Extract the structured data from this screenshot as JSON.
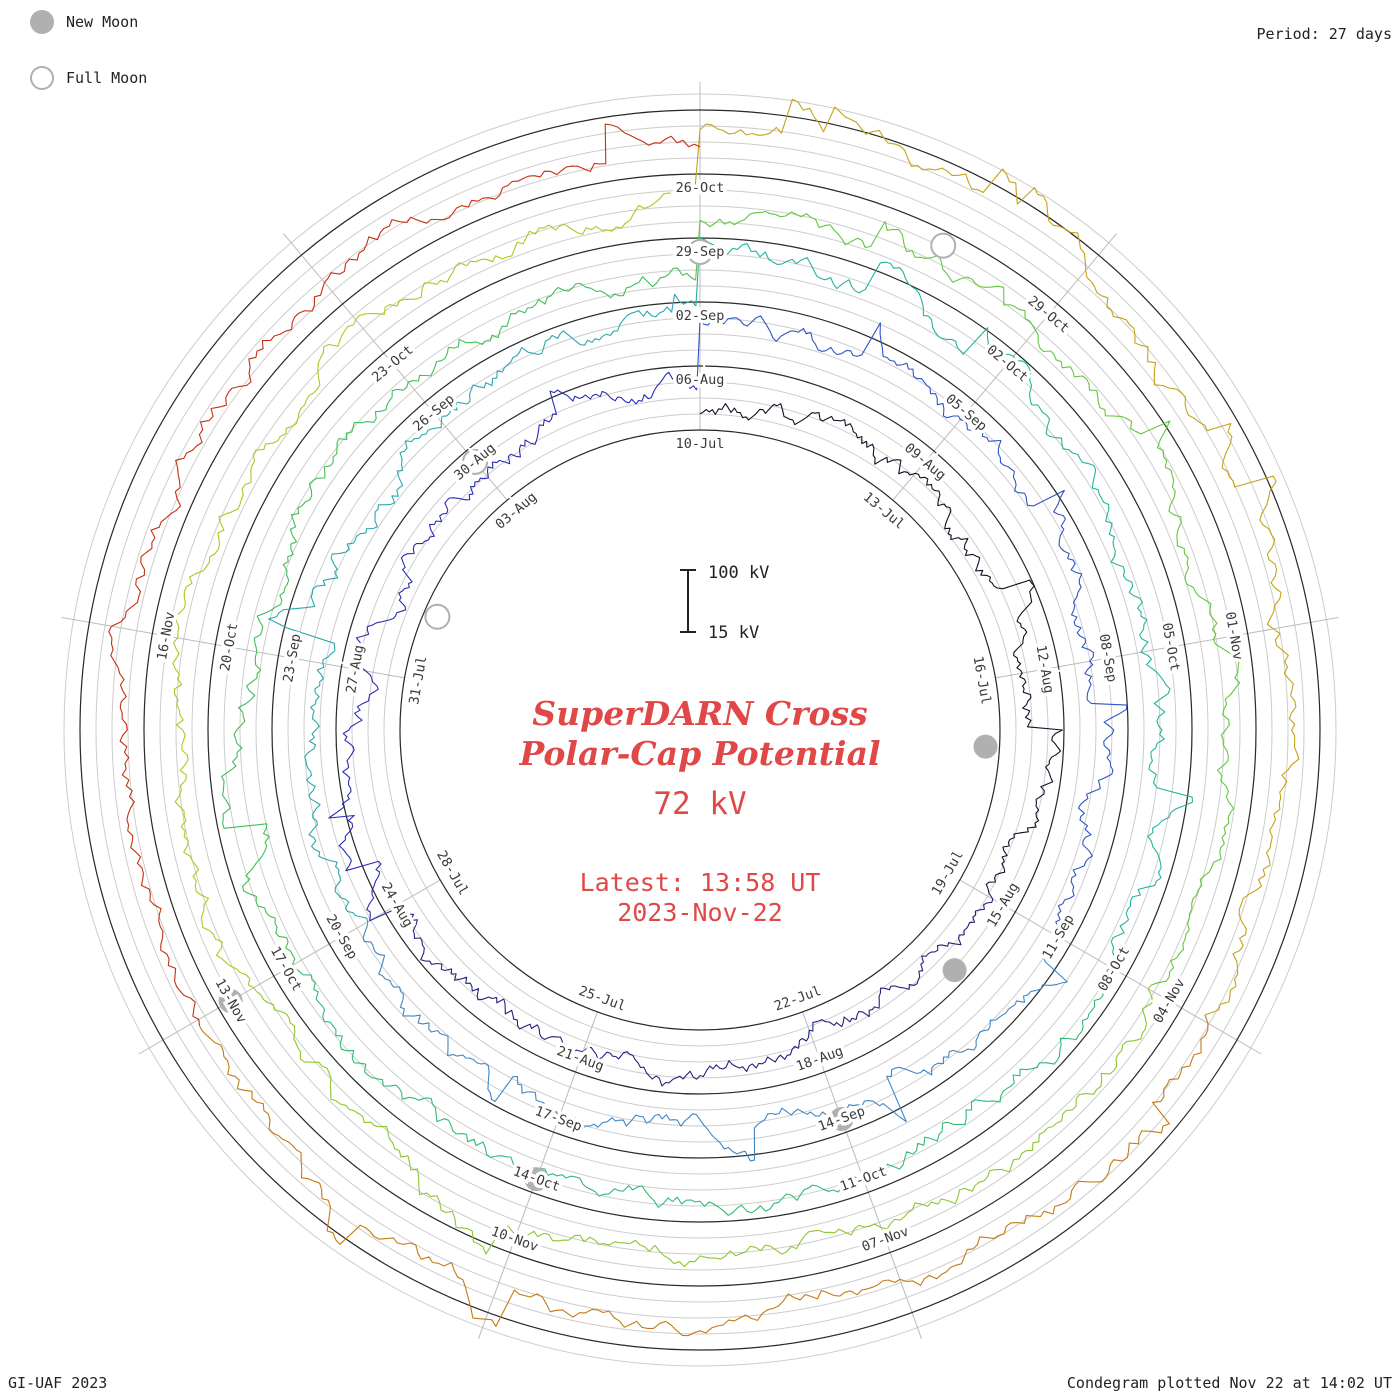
{
  "legend": {
    "new_moon": "New Moon",
    "full_moon": "Full Moon"
  },
  "header": {
    "period": "Period: 27 days"
  },
  "footer": {
    "credit": "GI-UAF 2023",
    "plotted": "Condegram plotted Nov 22 at 14:02 UT"
  },
  "center": {
    "title_line1": "SuperDARN Cross",
    "title_line2": "Polar-Cap Potential",
    "value": "72 kV",
    "latest_line1": "Latest: 13:58 UT",
    "latest_line2": "2023-Nov-22"
  },
  "scale_bar": {
    "top": "100 kV",
    "bottom": "15 kV"
  },
  "chart_data": {
    "type": "line",
    "variant": "condegram-spiral (time series wrapped in rings)",
    "title": "SuperDARN Cross Polar-Cap Potential",
    "units": "kV",
    "latest_value_kv": 72,
    "latest_time": "13:58 UT",
    "latest_date": "2023-Nov-22",
    "period_days": 27,
    "rings": 5,
    "label_interval_days": 3,
    "sectors_per_ring": 9,
    "value_scale_kv": [
      15,
      100
    ],
    "date_labels": [
      "10-Jul",
      "13-Jul",
      "16-Jul",
      "19-Jul",
      "22-Jul",
      "25-Jul",
      "28-Jul",
      "31-Jul",
      "03-Aug",
      "06-Aug",
      "09-Aug",
      "12-Aug",
      "15-Aug",
      "18-Aug",
      "21-Aug",
      "24-Aug",
      "27-Aug",
      "30-Aug",
      "02-Sep",
      "05-Sep",
      "08-Sep",
      "11-Sep",
      "14-Sep",
      "17-Sep",
      "20-Sep",
      "23-Sep",
      "26-Sep",
      "29-Sep",
      "02-Oct",
      "05-Oct",
      "08-Oct",
      "11-Oct",
      "14-Oct",
      "17-Oct",
      "20-Oct",
      "23-Oct",
      "26-Oct",
      "29-Oct",
      "01-Nov",
      "04-Nov",
      "07-Nov",
      "10-Nov",
      "13-Nov",
      "16-Nov"
    ],
    "segment_span_days": 9,
    "segment_colors": [
      "#101025",
      "#22227e",
      "#2c2cb2",
      "#2f55c6",
      "#3f86c4",
      "#2aa7ad",
      "#22b49b",
      "#2fba76",
      "#3fbf57",
      "#62c63d",
      "#8cc72d",
      "#b4c41d",
      "#c4a315",
      "#c47a12",
      "#c52f10"
    ],
    "moon_markers": {
      "new_moon_day_offsets": [
        7,
        37,
        66,
        96,
        126
      ],
      "full_moon_day_offsets": [
        22,
        51,
        81,
        110
      ]
    }
  }
}
